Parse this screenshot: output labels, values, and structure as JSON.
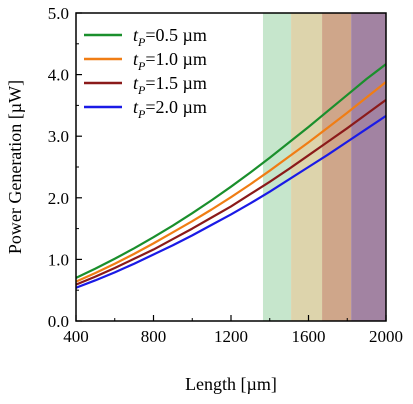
{
  "chart_data": {
    "type": "line",
    "title": "",
    "xlabel": "Length [µm]",
    "ylabel": "Power Generation [µW]",
    "xlim": [
      400,
      2000
    ],
    "ylim": [
      0,
      5
    ],
    "xticks": [
      "400",
      "800",
      "1200",
      "1600",
      "2000"
    ],
    "yticks": [
      "0.0",
      "1.0",
      "2.0",
      "3.0",
      "4.0",
      "5.0"
    ],
    "grid": false,
    "legend_position": "top-left",
    "x": [
      400,
      500,
      600,
      700,
      800,
      900,
      1000,
      1100,
      1200,
      1300,
      1400,
      1500,
      1600,
      1700,
      1800,
      1900,
      2000
    ],
    "series": [
      {
        "name": "tP=0.5 µm",
        "symbol": "t",
        "subscript": "P",
        "value_text": "=0.5 µm",
        "color": "#1a8f2c",
        "values": [
          0.7,
          0.85,
          1.01,
          1.18,
          1.36,
          1.55,
          1.75,
          1.96,
          2.18,
          2.41,
          2.65,
          2.9,
          3.15,
          3.41,
          3.67,
          3.93,
          4.17
        ]
      },
      {
        "name": "tP=1.0 µm",
        "symbol": "t",
        "subscript": "P",
        "value_text": "=1.0 µm",
        "color": "#f07d14",
        "values": [
          0.64,
          0.78,
          0.93,
          1.09,
          1.26,
          1.44,
          1.62,
          1.81,
          2.01,
          2.22,
          2.44,
          2.67,
          2.9,
          3.14,
          3.38,
          3.63,
          3.88
        ]
      },
      {
        "name": "tP=1.5 µm",
        "symbol": "t",
        "subscript": "P",
        "value_text": "=1.5 µm",
        "color": "#8b1a1a",
        "values": [
          0.59,
          0.72,
          0.86,
          1.01,
          1.16,
          1.33,
          1.5,
          1.68,
          1.86,
          2.06,
          2.26,
          2.47,
          2.69,
          2.91,
          3.13,
          3.36,
          3.59
        ]
      },
      {
        "name": "tP=2.0 µm",
        "symbol": "t",
        "subscript": "P",
        "value_text": "=2.0 µm",
        "color": "#1a1ae6",
        "values": [
          0.54,
          0.66,
          0.79,
          0.93,
          1.08,
          1.23,
          1.39,
          1.56,
          1.73,
          1.91,
          2.1,
          2.3,
          2.5,
          2.7,
          2.91,
          3.12,
          3.33
        ]
      }
    ],
    "shaded_regions": [
      {
        "x_start": 1365,
        "x_end": 1510,
        "color": "#c6e6cc"
      },
      {
        "x_start": 1510,
        "x_end": 1670,
        "color": "#ddd4ac"
      },
      {
        "x_start": 1670,
        "x_end": 1820,
        "color": "#cfa68a"
      },
      {
        "x_start": 1820,
        "x_end": 2000,
        "color": "#a283a2"
      }
    ]
  }
}
